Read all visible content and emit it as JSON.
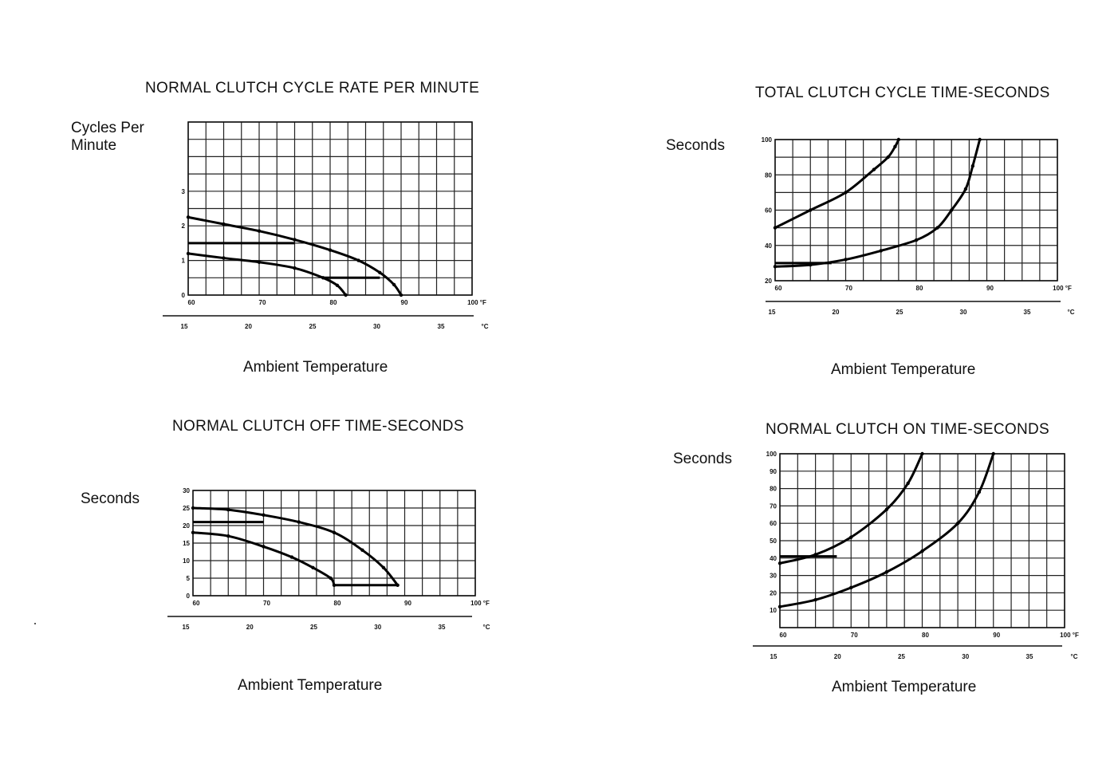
{
  "chart_data": [
    {
      "type": "area",
      "title": "NORMAL CLUTCH CYCLE RATE PER MINUTE",
      "ylabel": "Cycles Per\nMinute",
      "xlabel": "Ambient Temperature",
      "x_ticks_f": [
        "60",
        "70",
        "80",
        "90",
        "100 °F"
      ],
      "x_ticks_c": [
        "15",
        "20",
        "25",
        "30",
        "35",
        "°C"
      ],
      "y_ticks": [
        "0",
        "1",
        "2",
        "3"
      ],
      "xlim": [
        60,
        100
      ],
      "ylim": [
        0,
        5
      ],
      "grid": true,
      "series": [
        {
          "x": [
            60,
            65,
            70,
            75,
            80,
            84,
            87,
            89,
            90
          ],
          "values": [
            2.25,
            2.05,
            1.85,
            1.6,
            1.3,
            1.0,
            0.65,
            0.3,
            0.0
          ]
        },
        {
          "x": [
            60,
            65,
            70,
            75,
            79,
            81,
            82.2
          ],
          "values": [
            1.2,
            1.07,
            0.95,
            0.78,
            0.5,
            0.28,
            0.0
          ]
        }
      ],
      "flat_segments": [
        {
          "y": 1.5,
          "x": [
            60,
            75
          ]
        },
        {
          "y": 0.5,
          "x": [
            79,
            87
          ]
        }
      ]
    },
    {
      "type": "area",
      "title": "TOTAL CLUTCH CYCLE TIME-SECONDS",
      "ylabel": "Seconds",
      "xlabel": "Ambient Temperature",
      "x_ticks_f": [
        "60",
        "70",
        "80",
        "90",
        "100 °F"
      ],
      "x_ticks_c": [
        "15",
        "20",
        "25",
        "30",
        "35",
        "°C"
      ],
      "y_ticks": [
        "20",
        "40",
        "60",
        "80",
        "100"
      ],
      "xlim": [
        60,
        100
      ],
      "ylim": [
        20,
        100
      ],
      "grid": true,
      "series": [
        {
          "x": [
            60,
            65,
            70,
            74,
            76,
            77,
            77.5
          ],
          "values": [
            50,
            60,
            70,
            83,
            90,
            96,
            100
          ]
        },
        {
          "x": [
            60,
            65,
            70,
            75,
            80,
            83,
            85,
            87,
            88,
            89
          ],
          "values": [
            28,
            29,
            32,
            37,
            43,
            50,
            60,
            72,
            85,
            100
          ]
        }
      ],
      "flat_segments": [
        {
          "y": 30,
          "x": [
            60,
            68
          ]
        }
      ]
    },
    {
      "type": "area",
      "title": "NORMAL CLUTCH OFF TIME-SECONDS",
      "ylabel": "Seconds",
      "xlabel": "Ambient Temperature",
      "x_ticks_f": [
        "60",
        "70",
        "80",
        "90",
        "100 °F"
      ],
      "x_ticks_c": [
        "15",
        "20",
        "25",
        "30",
        "35",
        "°C"
      ],
      "y_ticks": [
        "0",
        "5",
        "10",
        "15",
        "20",
        "25",
        "30"
      ],
      "xlim": [
        60,
        100
      ],
      "ylim": [
        0,
        30
      ],
      "grid": true,
      "series": [
        {
          "x": [
            60,
            65,
            70,
            75,
            80,
            84,
            87,
            89
          ],
          "values": [
            25,
            24.5,
            23,
            21,
            18,
            13,
            8,
            3
          ]
        },
        {
          "x": [
            60,
            65,
            70,
            74,
            77,
            79.5,
            80
          ],
          "values": [
            18,
            17,
            14,
            11,
            8,
            5,
            3
          ]
        }
      ],
      "flat_segments": [
        {
          "y": 21,
          "x": [
            60,
            70
          ]
        },
        {
          "y": 3,
          "x": [
            80,
            89
          ]
        }
      ]
    },
    {
      "type": "area",
      "title": "NORMAL CLUTCH ON TIME-SECONDS",
      "ylabel": "Seconds",
      "xlabel": "Ambient Temperature",
      "x_ticks_f": [
        "60",
        "70",
        "80",
        "90",
        "100 °F"
      ],
      "x_ticks_c": [
        "15",
        "20",
        "25",
        "30",
        "35",
        "°C"
      ],
      "y_ticks": [
        "10",
        "20",
        "30",
        "40",
        "50",
        "60",
        "70",
        "80",
        "90",
        "100"
      ],
      "xlim": [
        60,
        100
      ],
      "ylim": [
        0,
        100
      ],
      "grid": true,
      "series": [
        {
          "x": [
            60,
            65,
            70,
            75,
            78,
            80
          ],
          "values": [
            37,
            42,
            52,
            68,
            83,
            100
          ]
        },
        {
          "x": [
            60,
            65,
            70,
            75,
            80,
            85,
            88,
            90
          ],
          "values": [
            12,
            16,
            23,
            32,
            44,
            60,
            78,
            100
          ]
        }
      ],
      "flat_segments": [
        {
          "y": 41,
          "x": [
            60,
            68
          ]
        }
      ]
    }
  ]
}
